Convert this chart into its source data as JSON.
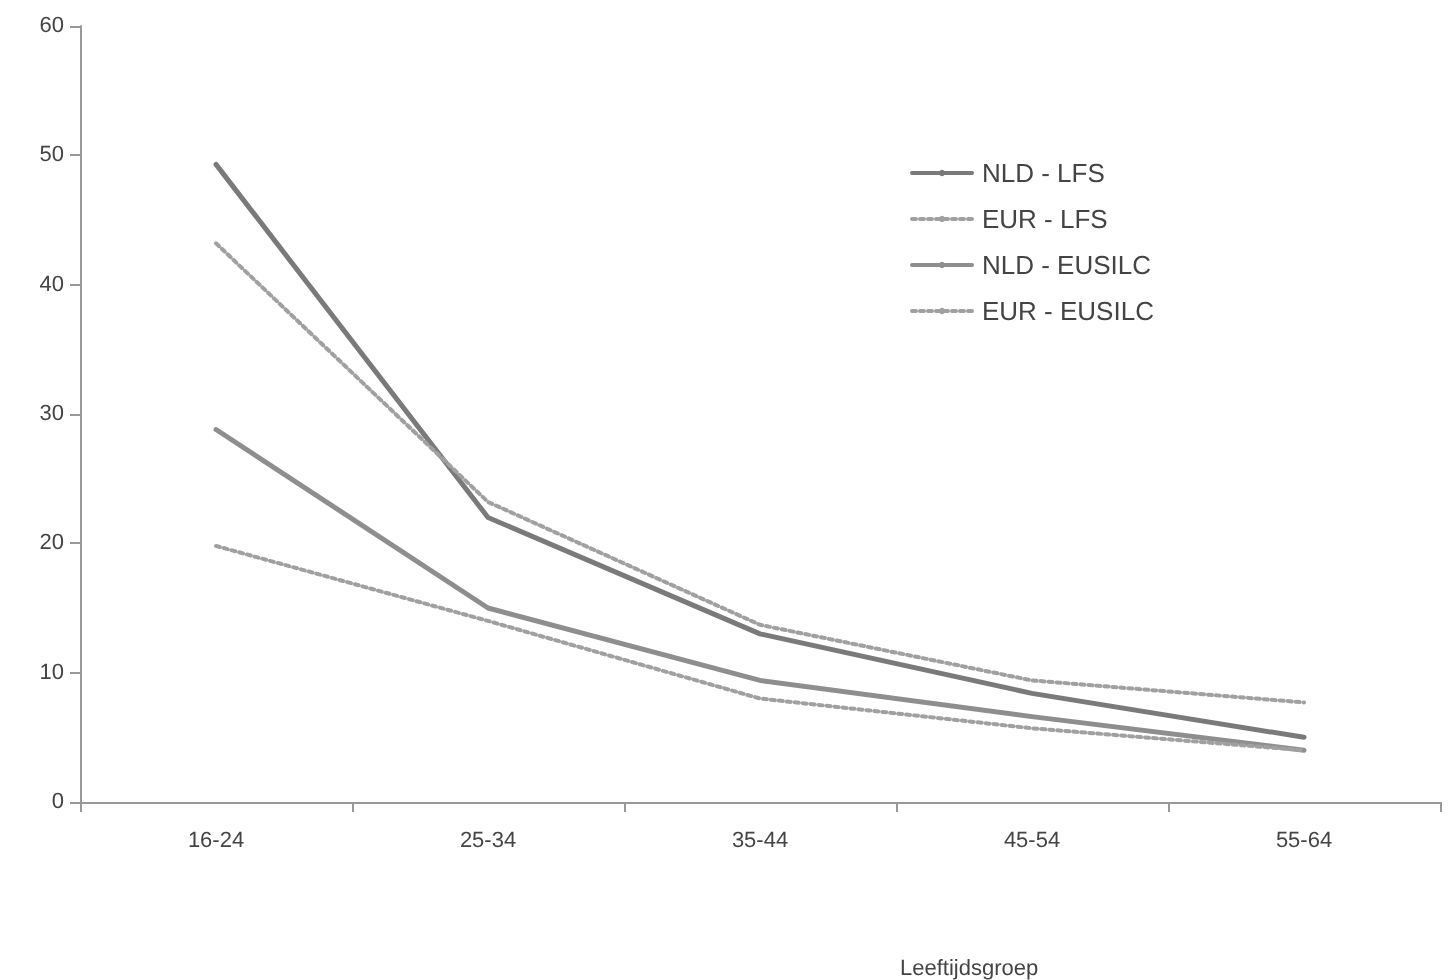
{
  "chart_data": {
    "type": "line",
    "xlabel": "Leeftijdsgroep",
    "categories": [
      "16-24",
      "25-34",
      "35-44",
      "45-54",
      "55-64"
    ],
    "series": [
      {
        "name": "NLD - LFS",
        "color": "#7a7a7a",
        "line_style": "solid",
        "values": [
          49.3,
          22,
          13,
          8.4,
          5
        ]
      },
      {
        "name": "EUR - LFS",
        "color": "#a0a0a0",
        "line_style": "dotted",
        "values": [
          43.2,
          23.2,
          13.7,
          9.4,
          7.7
        ]
      },
      {
        "name": "NLD - EUSILC",
        "color": "#8e8e8e",
        "line_style": "solid",
        "values": [
          28.8,
          15,
          9.4,
          6.6,
          4
        ]
      },
      {
        "name": "EUR - EUSILC",
        "color": "#a0a0a0",
        "line_style": "dotted",
        "values": [
          19.8,
          14,
          8,
          5.7,
          4
        ]
      }
    ],
    "ylim": [
      0,
      60
    ],
    "yticks": [
      0,
      10,
      20,
      30,
      40,
      50,
      60
    ],
    "grid": false,
    "legend": "top right",
    "marker": "none"
  }
}
